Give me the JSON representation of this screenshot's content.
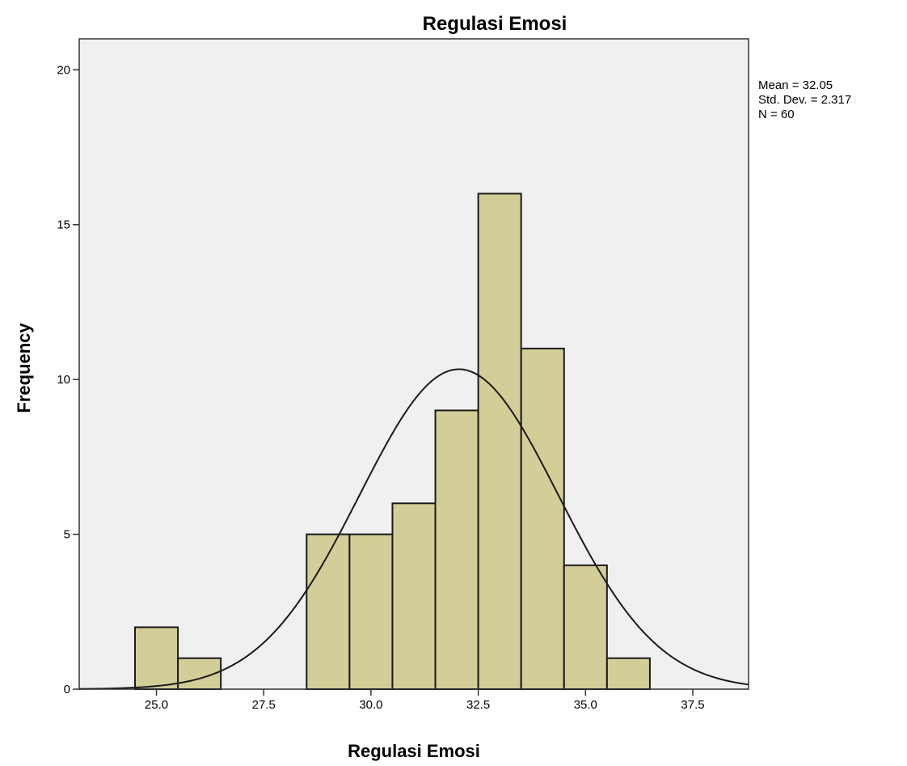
{
  "chart_data": {
    "type": "bar",
    "title": "Regulasi Emosi",
    "xlabel": "Regulasi Emosi",
    "ylabel": "Frequency",
    "xlim": [
      23.2,
      38.8
    ],
    "ylim": [
      0,
      21
    ],
    "x_ticks": [
      25.0,
      27.5,
      30.0,
      32.5,
      35.0,
      37.5
    ],
    "x_tick_labels": [
      "25.0",
      "27.5",
      "30.0",
      "32.5",
      "35.0",
      "37.5"
    ],
    "y_ticks": [
      0,
      5,
      10,
      15,
      20
    ],
    "y_tick_labels": [
      "0",
      "5",
      "10",
      "15",
      "20"
    ],
    "bin_width": 1,
    "bins": [
      {
        "center": 25,
        "count": 2
      },
      {
        "center": 26,
        "count": 1
      },
      {
        "center": 27,
        "count": 0
      },
      {
        "center": 28,
        "count": 0
      },
      {
        "center": 29,
        "count": 5
      },
      {
        "center": 30,
        "count": 5
      },
      {
        "center": 31,
        "count": 6
      },
      {
        "center": 32,
        "count": 9
      },
      {
        "center": 33,
        "count": 16
      },
      {
        "center": 34,
        "count": 11
      },
      {
        "center": 35,
        "count": 4
      },
      {
        "center": 36,
        "count": 1
      }
    ],
    "normal_curve": {
      "mean": 32.05,
      "sd": 2.317,
      "n": 60
    },
    "stats_lines": [
      "Mean = 32.05",
      "Std. Dev. = 2.317",
      "N = 60"
    ],
    "grid": false,
    "legend": "top-right",
    "colors": {
      "plot_background": "#f0f0f0",
      "bar_fill": "#d3ce97",
      "bar_stroke": "#1a1a1a",
      "curve": "#1a1a1a"
    }
  }
}
